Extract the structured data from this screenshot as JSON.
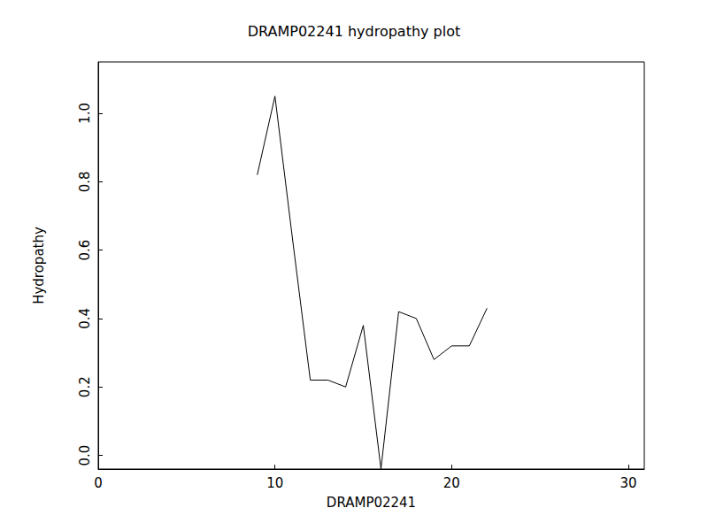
{
  "chart_data": {
    "type": "line",
    "title": "DRAMP02241 hydropathy plot",
    "x_label": "DRAMP02241",
    "y_label": "Hydropathy",
    "x": [
      9,
      10,
      11,
      12,
      13,
      14,
      15,
      16,
      17,
      18,
      19,
      20,
      21,
      22
    ],
    "values": [
      0.82,
      1.05,
      0.63,
      0.22,
      0.22,
      0.2,
      0.38,
      -0.04,
      0.42,
      0.4,
      0.28,
      0.32,
      0.32,
      0.43
    ],
    "color": "#000000",
    "xlim": [
      0,
      30.9
    ],
    "xticks": [
      0,
      10,
      20,
      30
    ],
    "ylim": [
      -0.04,
      1.15
    ],
    "yticks": [
      {
        "value": 0,
        "label": "0.0"
      },
      {
        "value": 0.2,
        "label": "0.2"
      },
      {
        "value": 0.4,
        "label": "0.4"
      },
      {
        "value": 0.6,
        "label": "0.6"
      },
      {
        "value": 0.8,
        "label": "0.8"
      },
      {
        "value": 1,
        "label": "1.0"
      }
    ],
    "grid": false
  }
}
